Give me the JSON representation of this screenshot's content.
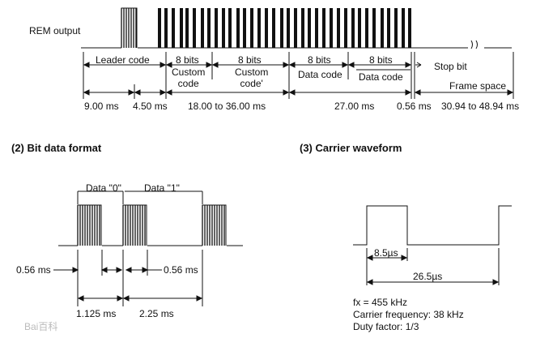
{
  "frame": {
    "rem_output_label": "REM output",
    "segments": {
      "leader_code": "Leader code",
      "bits_1": "8 bits",
      "bits_2": "8 bits",
      "bits_3": "8 bits",
      "bits_4": "8 bits",
      "custom_code": "Custom\ncode",
      "custom_code_inv": "Custom\ncode'",
      "data_code": "Data code",
      "data_code_inv": "Data code",
      "stop_bit": "Stop bit",
      "frame_space": "Frame space"
    },
    "timings": {
      "t1": "9.00 ms",
      "t2": "4.50 ms",
      "t3": "18.00 to 36.00 ms",
      "t4": "27.00 ms",
      "t5": "0.56 ms",
      "t6": "30.94 to 48.94 ms"
    }
  },
  "bit_format": {
    "heading": "(2) Bit data format",
    "data0": "Data \"0\"",
    "data1": "Data \"1\"",
    "pulse_left": "0.56 ms",
    "pulse_right": "0.56 ms",
    "period0": "1.125 ms",
    "period1": "2.25 ms"
  },
  "carrier": {
    "heading": "(3)  Carrier waveform",
    "high_time": "8.5µs",
    "period": "26.5µs",
    "fx": "fx = 455 kHz",
    "carrier_frequency": "Carrier frequency:  38 kHz",
    "duty_factor": "Duty factor:  1/3"
  },
  "watermark": "Bai百科"
}
